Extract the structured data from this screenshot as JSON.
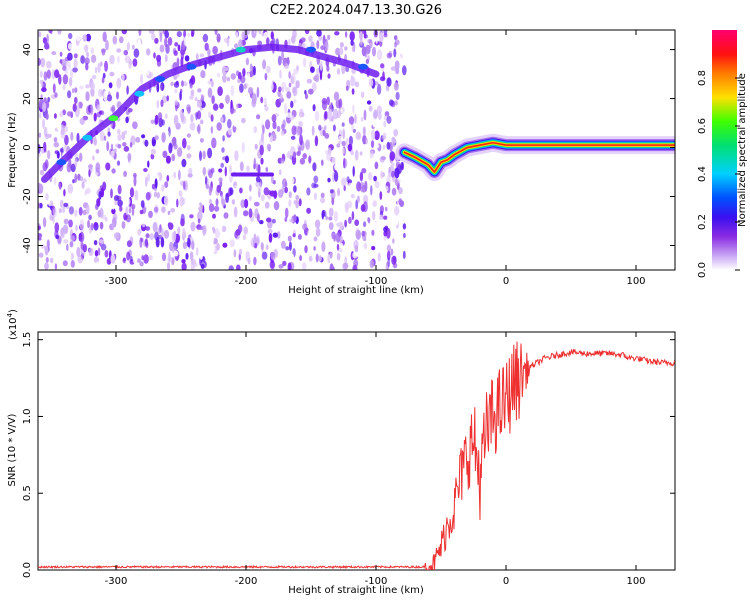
{
  "title": "C2E2.2024.047.13.30.G26",
  "colors": {
    "ridge": "#ff1f1f",
    "snr_line": "#ee3030",
    "grid_axes": "#000000"
  },
  "chart_data": [
    {
      "type": "heatmap",
      "xlabel": "Height of straight line (km)",
      "ylabel": "Frequency (Hz)",
      "xlim": [
        -360,
        130
      ],
      "ylim": [
        -50,
        48
      ],
      "xticks": [
        -300,
        -200,
        -100,
        0,
        100
      ],
      "yticks": [
        -40,
        -20,
        0,
        20,
        40
      ],
      "colorbar": {
        "label": "Normalized spectral amplitude",
        "range": [
          0,
          1
        ],
        "ticks": [
          "0.0",
          "0.2",
          "0.4",
          "0.6",
          "0.8"
        ],
        "colormap": "white-violet-blue-cyan-green-yellow-red-magenta"
      },
      "noise_region_x": [
        -360,
        -78
      ],
      "frequency_ridge": {
        "x": [
          -355,
          -340,
          -320,
          -300,
          -280,
          -260,
          -240,
          -220,
          -200,
          -180,
          -160,
          -140,
          -120,
          -100
        ],
        "y": [
          -13,
          -5,
          5,
          13,
          24,
          30,
          34,
          37,
          40,
          41,
          40,
          37,
          34,
          30
        ]
      },
      "weak_feature": {
        "x": [
          -210,
          -180
        ],
        "y": [
          -11,
          -11
        ]
      },
      "stable_signal": {
        "x": [
          -78,
          -70,
          -60,
          -55,
          -50,
          -45,
          -40,
          -30,
          -20,
          -10,
          0,
          20,
          50,
          80,
          100,
          130
        ],
        "y": [
          -2,
          -4,
          -7,
          -10,
          -6,
          -5,
          -3,
          0,
          1,
          2,
          1,
          1,
          1,
          1,
          1,
          1
        ]
      }
    },
    {
      "type": "line",
      "xlabel": "Height of straight line (km)",
      "ylabel": "SNR (10 * V/V)",
      "scale_label": "(x10",
      "scale_exp": "4",
      "scale_close": ")",
      "xlim": [
        -360,
        130
      ],
      "ylim": [
        0,
        1.55
      ],
      "xticks": [
        -300,
        -200,
        -100,
        0,
        100
      ],
      "yticks": [
        "0.0",
        "0.5",
        "1.0",
        "1.5"
      ],
      "series": [
        {
          "x": [
            -360,
            -300,
            -200,
            -100,
            -60,
            -55,
            -50,
            -45,
            -40,
            -35,
            -30,
            -25,
            -20,
            -15,
            -10,
            -5,
            0,
            5,
            10,
            15,
            20,
            30,
            40,
            50,
            60,
            70,
            80,
            90,
            95,
            100,
            110,
            120,
            130
          ],
          "y": [
            0.02,
            0.02,
            0.02,
            0.02,
            0.02,
            0.05,
            0.15,
            0.3,
            0.4,
            0.6,
            0.75,
            0.85,
            0.6,
            0.9,
            1.0,
            1.05,
            1.1,
            1.2,
            1.25,
            1.3,
            1.33,
            1.38,
            1.4,
            1.42,
            1.41,
            1.41,
            1.41,
            1.4,
            1.38,
            1.38,
            1.36,
            1.35,
            1.35
          ]
        }
      ]
    }
  ]
}
